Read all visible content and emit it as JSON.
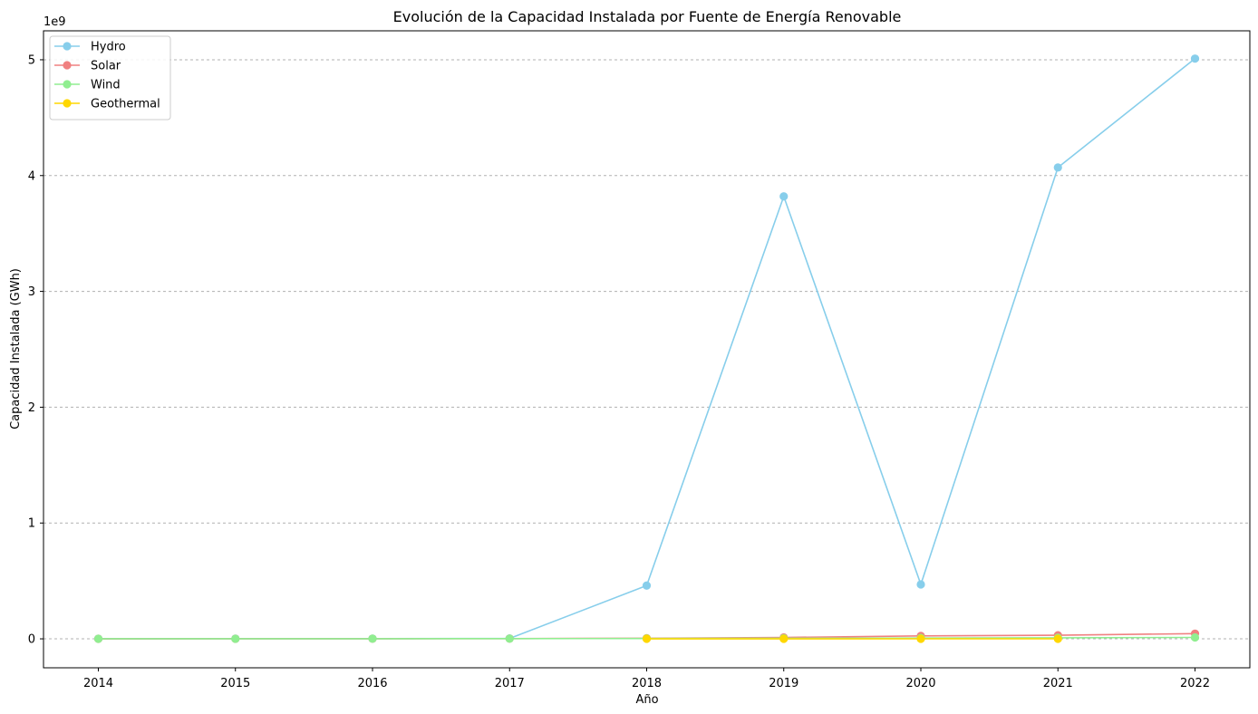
{
  "chart_data": {
    "type": "line",
    "title": "Evolución de la Capacidad Instalada por Fuente de Energía Renovable",
    "xlabel": "Año",
    "ylabel": "Capacidad Instalada (GWh)",
    "y_multiplier_label": "1e9",
    "y_multiplier": 1000000000,
    "x": [
      2014,
      2015,
      2016,
      2017,
      2018,
      2019,
      2020,
      2021,
      2022
    ],
    "x_tick_labels": [
      "2014",
      "2015",
      "2016",
      "2017",
      "2018",
      "2019",
      "2020",
      "2021",
      "2022"
    ],
    "xlim": [
      2013.6,
      2022.4
    ],
    "ylim": [
      -250000000,
      5250000000
    ],
    "y_ticks": [
      0,
      1000000000,
      2000000000,
      3000000000,
      4000000000,
      5000000000
    ],
    "y_tick_labels": [
      "0",
      "1",
      "2",
      "3",
      "4",
      "5"
    ],
    "grid": "y-dashed",
    "legend_position": "top-left",
    "series": [
      {
        "name": "Hydro",
        "color": "#87ceeb",
        "values": [
          1000000,
          1500000,
          2000000,
          3000000,
          460000000,
          3820000000,
          470000000,
          4070000000,
          5010000000
        ]
      },
      {
        "name": "Solar",
        "color": "#f08080",
        "values": [
          200000,
          500000,
          1000000,
          2000000,
          5000000,
          12000000,
          25000000,
          31000000,
          45000000
        ]
      },
      {
        "name": "Wind",
        "color": "#90ee90",
        "values": [
          500000,
          800000,
          1200000,
          1800000,
          3000000,
          5000000,
          7000000,
          9000000,
          12000000
        ]
      },
      {
        "name": "Geothermal",
        "color": "#ffd700",
        "values": [
          null,
          null,
          null,
          null,
          100000,
          200000,
          300000,
          400000,
          null
        ]
      }
    ]
  }
}
